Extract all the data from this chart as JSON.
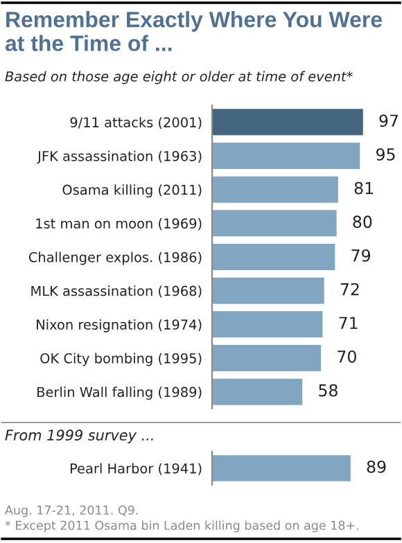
{
  "chart_data": [
    {
      "type": "bar",
      "orientation": "horizontal",
      "title": "Remember Exactly Where You Were at the Time of ...",
      "subtitle": "Based on those age eight or older at time of event*",
      "categories": [
        "9/11 attacks (2001)",
        "JFK assassination (1963)",
        "Osama killing (2011)",
        "1st man on moon (1969)",
        "Challenger explos. (1986)",
        "MLK assassination (1968)",
        "Nixon resignation (1974)",
        "OK City bombing (1995)",
        "Berlin Wall falling (1989)"
      ],
      "values": [
        97,
        95,
        81,
        80,
        79,
        72,
        71,
        70,
        58
      ],
      "colors": [
        "#44677f",
        "#82a6c2",
        "#82a6c2",
        "#82a6c2",
        "#82a6c2",
        "#82a6c2",
        "#82a6c2",
        "#82a6c2",
        "#82a6c2"
      ],
      "data_labels": true
    },
    {
      "type": "bar",
      "orientation": "horizontal",
      "title": "From 1999 survey ...",
      "categories": [
        "Pearl Harbor (1941)"
      ],
      "values": [
        89
      ],
      "colors": [
        "#82a6c2"
      ],
      "data_labels": true,
      "annotations": [
        "Aug. 17-21, 2011. Q9.",
        "* Except 2011 Osama bin Laden killing based on age 18+."
      ]
    }
  ]
}
